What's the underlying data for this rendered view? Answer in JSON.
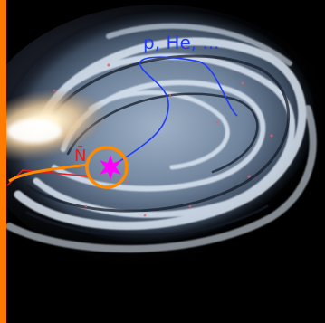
{
  "diagram": {
    "cosmic_ray_label": "p, He, ...",
    "antiparticle_label": "N̄",
    "colors": {
      "background": "#000000",
      "cosmic_ray_path": "#1f3cff",
      "antiparticle_path": "#ff8a00",
      "edge_bar": "#ff7a00",
      "source_star": "#ff00ff",
      "red_line": "#e02020",
      "galaxy_core": "#fff4d8",
      "galaxy_arm": "#b8c9de"
    }
  }
}
